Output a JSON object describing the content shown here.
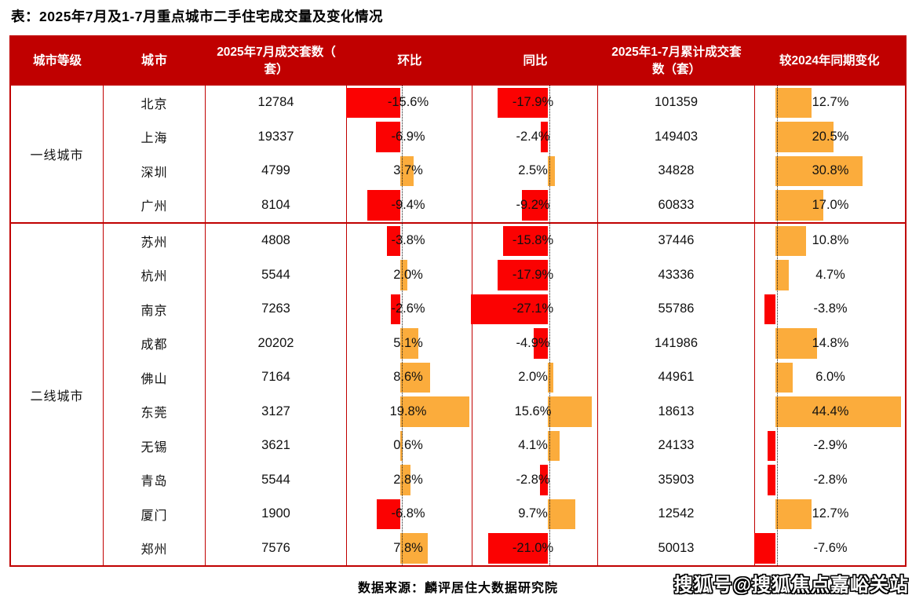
{
  "title": "表：2025年7月及1-7月重点城市二手住宅成交量及变化情况",
  "footer": {
    "source": "数据来源：麟评居住大数据研究院"
  },
  "watermark": "搜狐号@搜狐焦点嘉峪关站",
  "colors": {
    "header_bg": "#c00000",
    "grid_border": "#c00000",
    "positive_bar": "#fbac3c",
    "negative_bar": "#fb0202",
    "zero_line": "#1a1a1a"
  },
  "table": {
    "headers": [
      "城市等级",
      "城市",
      "2025年7月成交套数（套）",
      "环比",
      "同比",
      "2025年1-7月累计成交套数（套）",
      "较2024年同期变化"
    ],
    "groups": [
      {
        "tier": "一线城市",
        "rows": [
          {
            "city": "北京",
            "jul_count": "12784",
            "mom_pct": "-15.6%",
            "yoy_pct": "-17.9%",
            "cum_count": "101359",
            "vs2024_pct": "12.7%"
          },
          {
            "city": "上海",
            "jul_count": "19337",
            "mom_pct": "-6.9%",
            "yoy_pct": "-2.4%",
            "cum_count": "149403",
            "vs2024_pct": "20.5%"
          },
          {
            "city": "深圳",
            "jul_count": "4799",
            "mom_pct": "3.7%",
            "yoy_pct": "2.5%",
            "cum_count": "34828",
            "vs2024_pct": "30.8%"
          },
          {
            "city": "广州",
            "jul_count": "8104",
            "mom_pct": "-9.4%",
            "yoy_pct": "-9.2%",
            "cum_count": "60833",
            "vs2024_pct": "17.0%"
          }
        ]
      },
      {
        "tier": "二线城市",
        "rows": [
          {
            "city": "苏州",
            "jul_count": "4808",
            "mom_pct": "-3.8%",
            "yoy_pct": "-15.8%",
            "cum_count": "37446",
            "vs2024_pct": "10.8%"
          },
          {
            "city": "杭州",
            "jul_count": "5544",
            "mom_pct": "2.0%",
            "yoy_pct": "-17.9%",
            "cum_count": "43336",
            "vs2024_pct": "4.7%"
          },
          {
            "city": "南京",
            "jul_count": "7263",
            "mom_pct": "-2.6%",
            "yoy_pct": "-27.1%",
            "cum_count": "55786",
            "vs2024_pct": "-3.8%"
          },
          {
            "city": "成都",
            "jul_count": "20202",
            "mom_pct": "5.1%",
            "yoy_pct": "-4.9%",
            "cum_count": "141986",
            "vs2024_pct": "14.8%"
          },
          {
            "city": "佛山",
            "jul_count": "7164",
            "mom_pct": "8.6%",
            "yoy_pct": "2.0%",
            "cum_count": "44961",
            "vs2024_pct": "6.0%"
          },
          {
            "city": "东莞",
            "jul_count": "3127",
            "mom_pct": "19.8%",
            "yoy_pct": "15.6%",
            "cum_count": "18613",
            "vs2024_pct": "44.4%"
          },
          {
            "city": "无锡",
            "jul_count": "3621",
            "mom_pct": "0.6%",
            "yoy_pct": "4.1%",
            "cum_count": "24133",
            "vs2024_pct": "-2.9%"
          },
          {
            "city": "青岛",
            "jul_count": "5544",
            "mom_pct": "2.8%",
            "yoy_pct": "-2.8%",
            "cum_count": "35903",
            "vs2024_pct": "-2.8%"
          },
          {
            "city": "厦门",
            "jul_count": "1900",
            "mom_pct": "-6.8%",
            "yoy_pct": "9.7%",
            "cum_count": "12542",
            "vs2024_pct": "12.7%"
          },
          {
            "city": "郑州",
            "jul_count": "7576",
            "mom_pct": "7.8%",
            "yoy_pct": "-21.0%",
            "cum_count": "50013",
            "vs2024_pct": "-7.6%"
          }
        ]
      }
    ]
  },
  "chart_data": {
    "type": "table",
    "title": "表：2025年7月及1-7月重点城市二手住宅成交量及变化情况",
    "columns": [
      "城市等级",
      "城市",
      "2025年7月成交套数（套）",
      "环比",
      "同比",
      "2025年1-7月累计成交套数（套）",
      "较2024年同期变化"
    ],
    "rows": [
      [
        "一线城市",
        "北京",
        12784,
        -15.6,
        -17.9,
        101359,
        12.7
      ],
      [
        "一线城市",
        "上海",
        19337,
        -6.9,
        -2.4,
        149403,
        20.5
      ],
      [
        "一线城市",
        "深圳",
        4799,
        3.7,
        2.5,
        34828,
        30.8
      ],
      [
        "一线城市",
        "广州",
        8104,
        -9.4,
        -9.2,
        60833,
        17.0
      ],
      [
        "二线城市",
        "苏州",
        4808,
        -3.8,
        -15.8,
        37446,
        10.8
      ],
      [
        "二线城市",
        "杭州",
        5544,
        2.0,
        -17.9,
        43336,
        4.7
      ],
      [
        "二线城市",
        "南京",
        7263,
        -2.6,
        -27.1,
        55786,
        -3.8
      ],
      [
        "二线城市",
        "成都",
        20202,
        5.1,
        -4.9,
        141986,
        14.8
      ],
      [
        "二线城市",
        "佛山",
        7164,
        8.6,
        2.0,
        44961,
        6.0
      ],
      [
        "二线城市",
        "东莞",
        3127,
        19.8,
        15.6,
        18613,
        44.4
      ],
      [
        "二线城市",
        "无锡",
        3621,
        0.6,
        4.1,
        24133,
        -2.9
      ],
      [
        "二线城市",
        "青岛",
        5544,
        2.8,
        -2.8,
        35903,
        -2.8
      ],
      [
        "二线城市",
        "厦门",
        1900,
        -6.8,
        9.7,
        12542,
        12.7
      ],
      [
        "二线城市",
        "郑州",
        7576,
        7.8,
        -21.0,
        50013,
        -7.6
      ]
    ],
    "bar_columns": {
      "环比": {
        "color_positive": "#fbac3c",
        "color_negative": "#fb0202"
      },
      "同比": {
        "color_positive": "#fbac3c",
        "color_negative": "#fb0202"
      },
      "较2024年同期变化": {
        "color_positive": "#fbac3c",
        "color_negative": "#fb0202"
      }
    },
    "legend_position": "none",
    "grid": false
  }
}
